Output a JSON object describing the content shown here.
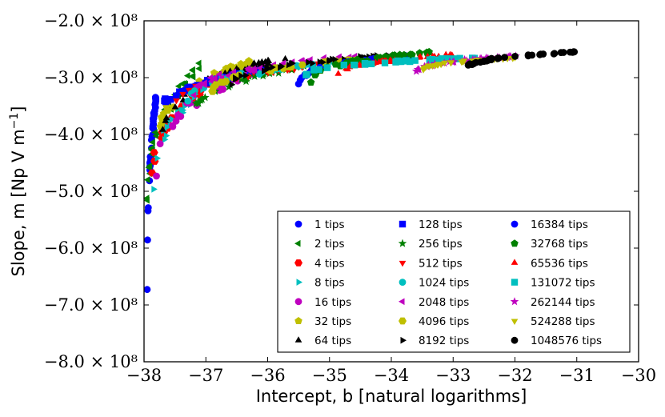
{
  "chart_data": {
    "type": "scatter",
    "title": "",
    "xlabel": "Intercept, b [natural logarithms]",
    "ylabel": "Slope, m [Np V m",
    "ylabel_superscript": "−1",
    "ylabel_close": "]",
    "xlim": [
      -38,
      -30
    ],
    "ylim": [
      -800000000,
      -200000000
    ],
    "grid": false,
    "legend_placement": "lower-right",
    "x_ticks": [
      -38,
      -37,
      -36,
      -35,
      -34,
      -33,
      -32,
      -31,
      -30
    ],
    "x_tick_labels": [
      "−38",
      "−37",
      "−36",
      "−35",
      "−34",
      "−33",
      "−32",
      "−31",
      "−30"
    ],
    "y_ticks": [
      -200000000,
      -300000000,
      -400000000,
      -500000000,
      -600000000,
      -700000000,
      -800000000
    ],
    "y_tick_labels": [
      "−2.0 × 10⁸",
      "−3.0 × 10⁸",
      "−4.0 × 10⁸",
      "−5.0 × 10⁸",
      "−6.0 × 10⁸",
      "−7.0 × 10⁸",
      "−8.0 × 10⁸"
    ],
    "series": [
      {
        "name": "1 tips",
        "color": "#0000ff",
        "marker": "circle",
        "x_range": [
          -37.95,
          -37.8
        ],
        "y_range": [
          -700000000,
          -330000000
        ]
      },
      {
        "name": "2 tips",
        "color": "#008000",
        "marker": "triangle-left",
        "x_range": [
          -37.95,
          -37.1
        ],
        "y_range": [
          -555000000,
          -280000000
        ]
      },
      {
        "name": "4 tips",
        "color": "#ff0000",
        "marker": "hexagon",
        "x_range": [
          -37.9,
          -36.8
        ],
        "y_range": [
          -520000000,
          -300000000
        ]
      },
      {
        "name": "8 tips",
        "color": "#00bfbf",
        "marker": "triangle-right",
        "x_range": [
          -37.85,
          -36.6
        ],
        "y_range": [
          -510000000,
          -290000000
        ]
      },
      {
        "name": "16 tips",
        "color": "#bf00bf",
        "marker": "circle",
        "x_range": [
          -37.8,
          -36.0
        ],
        "y_range": [
          -480000000,
          -280000000
        ]
      },
      {
        "name": "32 tips",
        "color": "#bfbf00",
        "marker": "pentagon",
        "x_range": [
          -37.8,
          -36.2
        ],
        "y_range": [
          -430000000,
          -270000000
        ]
      },
      {
        "name": "64 tips",
        "color": "#000000",
        "marker": "triangle-up",
        "x_range": [
          -37.7,
          -35.7
        ],
        "y_range": [
          -410000000,
          -265000000
        ]
      },
      {
        "name": "128 tips",
        "color": "#0000ff",
        "marker": "square",
        "x_range": [
          -37.8,
          -36.0
        ],
        "y_range": [
          -380000000,
          -285000000
        ]
      },
      {
        "name": "256 tips",
        "color": "#008000",
        "marker": "star",
        "x_range": [
          -37.2,
          -35.1
        ],
        "y_range": [
          -375000000,
          -275000000
        ]
      },
      {
        "name": "512 tips",
        "color": "#ff0000",
        "marker": "triangle-down",
        "x_range": [
          -37.5,
          -35.0
        ],
        "y_range": [
          -360000000,
          -275000000
        ]
      },
      {
        "name": "1024 tips",
        "color": "#00bfbf",
        "marker": "circle",
        "x_range": [
          -37.3,
          -34.6
        ],
        "y_range": [
          -350000000,
          -270000000
        ]
      },
      {
        "name": "2048 tips",
        "color": "#bf00bf",
        "marker": "triangle-left",
        "x_range": [
          -37.2,
          -34.5
        ],
        "y_range": [
          -340000000,
          -260000000
        ]
      },
      {
        "name": "4096 tips",
        "color": "#bfbf00",
        "marker": "hexagon",
        "x_range": [
          -36.9,
          -34.1
        ],
        "y_range": [
          -330000000,
          -265000000
        ]
      },
      {
        "name": "8192 tips",
        "color": "#000000",
        "marker": "triangle-right",
        "x_range": [
          -36.6,
          -34.0
        ],
        "y_range": [
          -320000000,
          -260000000
        ]
      },
      {
        "name": "16384 tips",
        "color": "#0000ff",
        "marker": "circle",
        "x_range": [
          -35.5,
          -33.6
        ],
        "y_range": [
          -315000000,
          -260000000
        ]
      },
      {
        "name": "32768 tips",
        "color": "#008000",
        "marker": "pentagon",
        "x_range": [
          -35.3,
          -33.3
        ],
        "y_range": [
          -310000000,
          -255000000
        ]
      },
      {
        "name": "65536 tips",
        "color": "#ff0000",
        "marker": "triangle-up",
        "x_range": [
          -34.9,
          -33.0
        ],
        "y_range": [
          -305000000,
          -260000000
        ]
      },
      {
        "name": "131072 tips",
        "color": "#00bfbf",
        "marker": "square",
        "x_range": [
          -35.4,
          -32.6
        ],
        "y_range": [
          -300000000,
          -265000000
        ]
      },
      {
        "name": "262144 tips",
        "color": "#bf00bf",
        "marker": "star",
        "x_range": [
          -33.6,
          -31.9
        ],
        "y_range": [
          -295000000,
          -262000000
        ]
      },
      {
        "name": "524288 tips",
        "color": "#bfbf00",
        "marker": "triangle-down",
        "x_range": [
          -33.5,
          -32.0
        ],
        "y_range": [
          -290000000,
          -265000000
        ]
      },
      {
        "name": "1048576 tips",
        "color": "#000000",
        "marker": "circle",
        "x_range": [
          -32.8,
          -31.0
        ],
        "y_range": [
          -287000000,
          -255000000
        ]
      }
    ]
  }
}
